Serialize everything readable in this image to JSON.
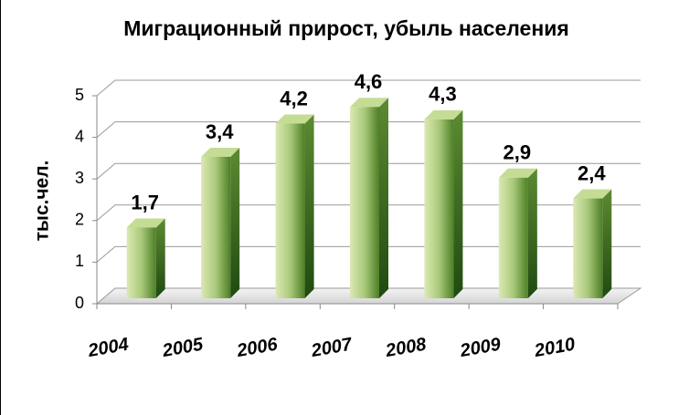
{
  "chart_data": {
    "type": "bar",
    "title": "Миграционный прирост, убыль населения",
    "y_label": "тыс.чел.",
    "categories": [
      "2004",
      "2005",
      "2006",
      "2007",
      "2008",
      "2009",
      "2010"
    ],
    "values": [
      1.7,
      3.4,
      4.2,
      4.6,
      4.3,
      2.9,
      2.4
    ],
    "value_labels": [
      "1,7",
      "3,4",
      "4,2",
      "4,6",
      "4,3",
      "2,9",
      "2,4"
    ],
    "color": "#6e9a3c",
    "ylim": [
      0,
      5
    ],
    "yticks": [
      0,
      1,
      2,
      3,
      4,
      5
    ],
    "grid": true
  }
}
